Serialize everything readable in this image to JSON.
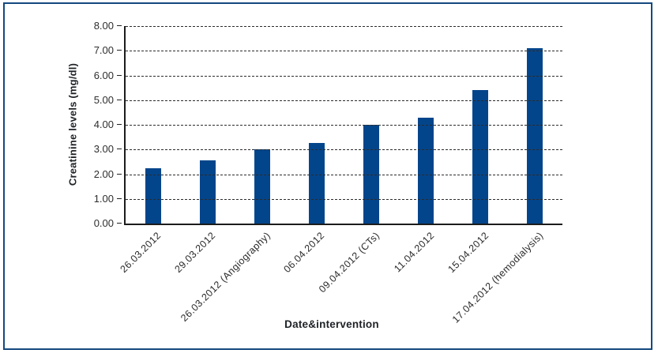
{
  "figure": {
    "border_color": "#14497f",
    "background_color": "#ffffff"
  },
  "chart_data": {
    "type": "bar",
    "title": "",
    "xlabel": "Date&intervention",
    "ylabel": "Creatinine levels (mg/dl)",
    "categories": [
      "26.03.2012",
      "29.03.2012",
      "26.03.2012 (Angiography)",
      "06.04.2012",
      "09.04.2012 (CTs)",
      "11.04.2012",
      "15.04.2012",
      "17.04.2012 (hemodialysis)"
    ],
    "values": [
      2.25,
      2.55,
      3.0,
      3.25,
      4.0,
      4.3,
      5.4,
      7.1
    ],
    "ylim": [
      0,
      8
    ],
    "ytick_step": 1,
    "ytick_labels": [
      "0.00",
      "1.00",
      "2.00",
      "3.00",
      "4.00",
      "5.00",
      "6.00",
      "7.00",
      "8.00"
    ],
    "grid": "horizontal-dashed",
    "gridlines_over_bars": true,
    "legend": "none",
    "bar_color": "#03458b",
    "axis_color": "#1c1c1c",
    "text_color": "#2b2b2b"
  }
}
